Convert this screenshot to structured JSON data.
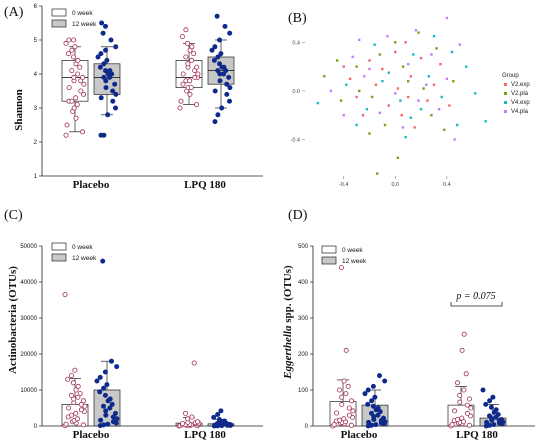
{
  "colors": {
    "week0_box": "#ffffff",
    "week12_box": "#c8c8c8",
    "week0_point": "#a0305a",
    "week12_point": "#0e2a8a",
    "v2_exp": "#f06a6a",
    "v2_pla": "#6aa814",
    "v4_exp": "#1fb8c4",
    "v4_pla": "#c77cff"
  },
  "chart_data": [
    {
      "panel": "(A)",
      "type": "box",
      "ylabel": "Shannon",
      "ylim": [
        1,
        6
      ],
      "yticks": [
        "1",
        "2",
        "3",
        "4",
        "5",
        "6"
      ],
      "categories": [
        "Placebo",
        "LPQ 180"
      ],
      "legend": [
        "0 week",
        "12 week"
      ],
      "series": [
        {
          "name": "0 week",
          "groups": [
            {
              "category": "Placebo",
              "whisker_low": 2.3,
              "q1": 3.2,
              "median": 3.9,
              "q3": 4.4,
              "whisker_high": 4.8,
              "points": [
                2.2,
                2.3,
                2.5,
                2.7,
                2.9,
                3.0,
                3.1,
                3.2,
                3.2,
                3.3,
                3.4,
                3.5,
                3.6,
                3.7,
                3.8,
                3.8,
                3.9,
                3.9,
                4.0,
                4.1,
                4.2,
                4.3,
                4.4,
                4.5,
                4.6,
                4.7,
                4.8,
                4.9,
                5.0,
                5.0
              ]
            },
            {
              "category": "LPQ 180",
              "whisker_low": 3.1,
              "q1": 3.6,
              "median": 3.9,
              "q3": 4.4,
              "whisker_high": 4.9,
              "points": [
                3.0,
                3.1,
                3.2,
                3.4,
                3.5,
                3.6,
                3.6,
                3.7,
                3.8,
                3.8,
                3.9,
                3.9,
                4.0,
                4.0,
                4.1,
                4.2,
                4.2,
                4.3,
                4.4,
                4.5,
                4.6,
                4.7,
                4.8,
                4.9,
                5.1,
                5.3
              ]
            }
          ]
        },
        {
          "name": "12 week",
          "groups": [
            {
              "category": "Placebo",
              "whisker_low": 2.8,
              "q1": 3.4,
              "median": 3.9,
              "q3": 4.3,
              "whisker_high": 4.8,
              "points": [
                2.2,
                2.2,
                2.8,
                3.0,
                3.2,
                3.3,
                3.4,
                3.5,
                3.6,
                3.7,
                3.8,
                3.9,
                3.9,
                4.0,
                4.0,
                4.1,
                4.1,
                4.2,
                4.3,
                4.4,
                4.5,
                4.6,
                4.7,
                4.8,
                5.0,
                5.2,
                5.4,
                5.5
              ]
            },
            {
              "category": "LPQ 180",
              "whisker_low": 3.0,
              "q1": 3.7,
              "median": 4.1,
              "q3": 4.5,
              "whisker_high": 5.0,
              "points": [
                2.6,
                2.8,
                3.0,
                3.2,
                3.4,
                3.5,
                3.6,
                3.7,
                3.8,
                3.9,
                4.0,
                4.0,
                4.1,
                4.1,
                4.2,
                4.2,
                4.3,
                4.4,
                4.5,
                4.6,
                4.7,
                4.8,
                5.0,
                5.2,
                5.4,
                5.7
              ]
            }
          ]
        }
      ]
    },
    {
      "panel": "(B)",
      "type": "scatter",
      "xlim": [
        -0.7,
        0.75
      ],
      "ylim": [
        -0.7,
        0.6
      ],
      "xticks": [
        "-0.4",
        "0.0",
        "0.4"
      ],
      "yticks": [
        "-0.4",
        "0.0",
        "0.4"
      ],
      "legend_title": "Group",
      "legend_placement": "right",
      "series": [
        {
          "name": "V2.exp",
          "color": "#f06a6a",
          "points": [
            [
              -0.35,
              0.1
            ],
            [
              -0.3,
              -0.05
            ],
            [
              -0.2,
              0.25
            ],
            [
              -0.1,
              0.18
            ],
            [
              0.0,
              0.32
            ],
            [
              0.05,
              -0.2
            ],
            [
              0.12,
              0.12
            ],
            [
              0.2,
              0.27
            ],
            [
              0.25,
              -0.08
            ],
            [
              0.3,
              0.05
            ],
            [
              -0.05,
              -0.12
            ],
            [
              0.08,
              0.4
            ],
            [
              -0.25,
              -0.2
            ],
            [
              0.15,
              -0.3
            ],
            [
              0.35,
              0.22
            ],
            [
              -0.15,
              0.05
            ],
            [
              0.02,
              0.02
            ],
            [
              0.42,
              -0.12
            ],
            [
              -0.4,
              0.2
            ],
            [
              0.1,
              -0.05
            ]
          ]
        },
        {
          "name": "V2.pla",
          "color": "#6aa814",
          "points": [
            [
              -0.55,
              0.12
            ],
            [
              -0.42,
              -0.08
            ],
            [
              -0.3,
              0.2
            ],
            [
              -0.18,
              -0.05
            ],
            [
              -0.08,
              -0.28
            ],
            [
              0.0,
              0.4
            ],
            [
              0.06,
              0.2
            ],
            [
              0.18,
              0.48
            ],
            [
              0.28,
              -0.2
            ],
            [
              0.32,
              0.35
            ],
            [
              -0.12,
              0.3
            ],
            [
              0.02,
              -0.55
            ],
            [
              0.22,
              0.02
            ],
            [
              0.45,
              0.08
            ],
            [
              -0.2,
              -0.35
            ],
            [
              0.1,
              0.08
            ],
            [
              -0.45,
              0.25
            ],
            [
              0.38,
              -0.32
            ],
            [
              -0.28,
              0.0
            ],
            [
              -0.14,
              -0.68
            ]
          ]
        },
        {
          "name": "V4.exp",
          "color": "#1fb8c4",
          "points": [
            [
              -0.6,
              -0.1
            ],
            [
              -0.38,
              0.05
            ],
            [
              -0.22,
              -0.15
            ],
            [
              -0.1,
              0.08
            ],
            [
              0.04,
              -0.08
            ],
            [
              0.14,
              0.3
            ],
            [
              0.26,
              0.12
            ],
            [
              0.36,
              -0.05
            ],
            [
              0.48,
              -0.28
            ],
            [
              0.55,
              0.2
            ],
            [
              -0.3,
              -0.28
            ],
            [
              0.08,
              -0.38
            ],
            [
              0.2,
              -0.15
            ],
            [
              0.62,
              -0.02
            ],
            [
              -0.16,
              0.38
            ],
            [
              0.44,
              0.32
            ],
            [
              0.3,
              0.45
            ],
            [
              -0.05,
              0.15
            ],
            [
              0.12,
              -0.22
            ],
            [
              0.7,
              -0.25
            ]
          ]
        },
        {
          "name": "V4.pla",
          "color": "#c77cff",
          "points": [
            [
              -0.5,
              0.0
            ],
            [
              -0.33,
              0.28
            ],
            [
              -0.24,
              0.12
            ],
            [
              -0.12,
              -0.18
            ],
            [
              0.0,
              -0.02
            ],
            [
              0.1,
              0.22
            ],
            [
              0.18,
              -0.08
            ],
            [
              0.28,
              0.3
            ],
            [
              0.4,
              0.1
            ],
            [
              0.5,
              0.38
            ],
            [
              -0.4,
              -0.2
            ],
            [
              -0.06,
              0.45
            ],
            [
              0.16,
              0.5
            ],
            [
              0.34,
              -0.15
            ],
            [
              0.46,
              -0.4
            ],
            [
              -0.2,
              0.18
            ],
            [
              0.06,
              -0.3
            ],
            [
              0.24,
              0.05
            ],
            [
              -0.28,
              0.42
            ],
            [
              0.4,
              0.6
            ]
          ]
        }
      ]
    },
    {
      "panel": "(C)",
      "type": "bar",
      "ylabel": "Actinobacteria (OTUs)",
      "ylim": [
        0,
        50000
      ],
      "yticks": [
        "0",
        "10000",
        "20000",
        "30000",
        "40000",
        "50000"
      ],
      "categories": [
        "Placebo",
        "LPQ 180"
      ],
      "legend": [
        "0 week",
        "12 week"
      ],
      "series": [
        {
          "name": "0 week",
          "groups": [
            {
              "category": "Placebo",
              "mean": 6000,
              "sd_high": 13200,
              "points": [
                100,
                300,
                500,
                800,
                1200,
                1500,
                2000,
                2500,
                3000,
                3500,
                4000,
                4500,
                5000,
                5500,
                6000,
                6500,
                7000,
                7500,
                8000,
                8500,
                9000,
                10000,
                11000,
                12000,
                13000,
                14000,
                15500,
                36500
              ]
            },
            {
              "category": "LPQ 180",
              "mean": 800,
              "sd_high": 2400,
              "points": [
                0,
                50,
                100,
                150,
                200,
                250,
                300,
                350,
                400,
                450,
                500,
                600,
                700,
                800,
                900,
                1000,
                1200,
                2000,
                2500,
                3500,
                17500
              ]
            }
          ]
        },
        {
          "name": "12 week",
          "groups": [
            {
              "category": "Placebo",
              "mean": 10000,
              "sd_high": 18000,
              "points": [
                100,
                300,
                500,
                800,
                1200,
                1600,
                2000,
                2500,
                3000,
                3500,
                4200,
                5000,
                5500,
                6000,
                7000,
                7500,
                8500,
                9500,
                10500,
                11500,
                12500,
                13500,
                15000,
                16500,
                18000,
                45800
              ]
            },
            {
              "category": "LPQ 180",
              "mean": 600,
              "sd_high": 1800,
              "points": [
                0,
                50,
                100,
                150,
                200,
                250,
                300,
                350,
                400,
                450,
                500,
                600,
                700,
                800,
                1000,
                1400,
                1800,
                2400,
                3200,
                4200
              ]
            }
          ]
        }
      ]
    },
    {
      "panel": "(D)",
      "type": "bar",
      "ylabel_italic": "Eggerthella",
      "ylabel_rest": " spp. (OTUs)",
      "ylim": [
        0,
        500
      ],
      "yticks": [
        "0",
        "100",
        "200",
        "300",
        "400",
        "500"
      ],
      "categories": [
        "Placebo",
        "LPQ 180"
      ],
      "legend": [
        "0 week",
        "12 week"
      ],
      "annotation": "p = 0.075",
      "series": [
        {
          "name": "0 week",
          "groups": [
            {
              "category": "Placebo",
              "mean": 68,
              "sd_high": 128,
              "points": [
                0,
                2,
                4,
                6,
                8,
                10,
                12,
                14,
                16,
                20,
                24,
                30,
                36,
                42,
                50,
                60,
                70,
                80,
                90,
                100,
                110,
                125,
                210,
                440
              ]
            },
            {
              "category": "LPQ 180",
              "mean": 58,
              "sd_high": 110,
              "points": [
                0,
                2,
                4,
                6,
                8,
                10,
                12,
                15,
                18,
                22,
                28,
                35,
                42,
                50,
                58,
                66,
                75,
                85,
                100,
                120,
                145,
                210,
                255
              ]
            }
          ]
        },
        {
          "name": "12 week",
          "groups": [
            {
              "category": "Placebo",
              "mean": 58,
              "sd_high": 100,
              "points": [
                0,
                2,
                4,
                6,
                8,
                10,
                12,
                15,
                18,
                22,
                26,
                30,
                35,
                40,
                45,
                50,
                55,
                60,
                70,
                80,
                90,
                100,
                110,
                125,
                140
              ]
            },
            {
              "category": "LPQ 180",
              "mean": 22,
              "sd_high": 60,
              "points": [
                0,
                2,
                4,
                6,
                8,
                10,
                12,
                14,
                16,
                18,
                20,
                24,
                28,
                32,
                38,
                45,
                52,
                60,
                70,
                80,
                100
              ]
            }
          ]
        }
      ]
    }
  ]
}
